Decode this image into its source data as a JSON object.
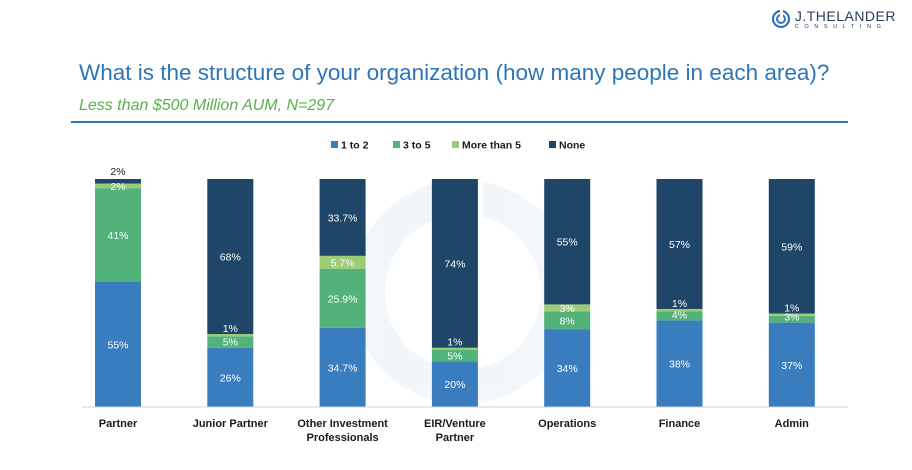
{
  "brand": {
    "name": "J.THELANDER",
    "sub": "CONSULTING"
  },
  "header": {
    "title": "What is the structure of your organization (how many people in each area)?",
    "subtitle": "Less than $500 Million AUM, N=297"
  },
  "colors": {
    "one_to_two": "#3a7dbf",
    "three_to_five": "#52b27a",
    "more_than_five": "#9ccc74",
    "none": "#1f4569",
    "title": "#2e75b6"
  },
  "chart_data": {
    "type": "bar",
    "stacked": true,
    "title": "What is the structure of your organization (how many people in each area)?",
    "legend_position": "top",
    "categories": [
      [
        "Partner"
      ],
      [
        "Junior Partner"
      ],
      [
        "Other Investment",
        "Professionals"
      ],
      [
        "EIR/Venture",
        "Partner"
      ],
      [
        "Operations"
      ],
      [
        "Finance"
      ],
      [
        "Admin"
      ]
    ],
    "ylim": [
      0,
      100
    ],
    "series": [
      {
        "name": "1 to 2",
        "color": "#3a7dbf",
        "values": [
          55,
          26,
          34.7,
          20,
          34,
          38,
          37
        ],
        "labels": [
          "55%",
          "26%",
          "34.7%",
          "20%",
          "34%",
          "38%",
          "37%"
        ]
      },
      {
        "name": "3 to 5",
        "color": "#52b27a",
        "values": [
          41,
          5,
          25.9,
          5,
          8,
          4,
          3
        ],
        "labels": [
          "41%",
          "5%",
          "25.9%",
          "5%",
          "8%",
          "4%",
          "3%"
        ]
      },
      {
        "name": "More than 5",
        "color": "#9ccc74",
        "values": [
          2,
          1,
          5.7,
          1,
          3,
          1,
          1
        ],
        "labels": [
          "2%",
          "1%",
          "5.7%",
          "1%",
          "3%",
          "1%",
          "1%"
        ]
      },
      {
        "name": "None",
        "color": "#1f4569",
        "values": [
          2,
          68,
          33.7,
          74,
          55,
          57,
          59
        ],
        "labels": [
          "2%",
          "68%",
          "33.7%",
          "74%",
          "55%",
          "57%",
          "59%"
        ]
      }
    ]
  }
}
